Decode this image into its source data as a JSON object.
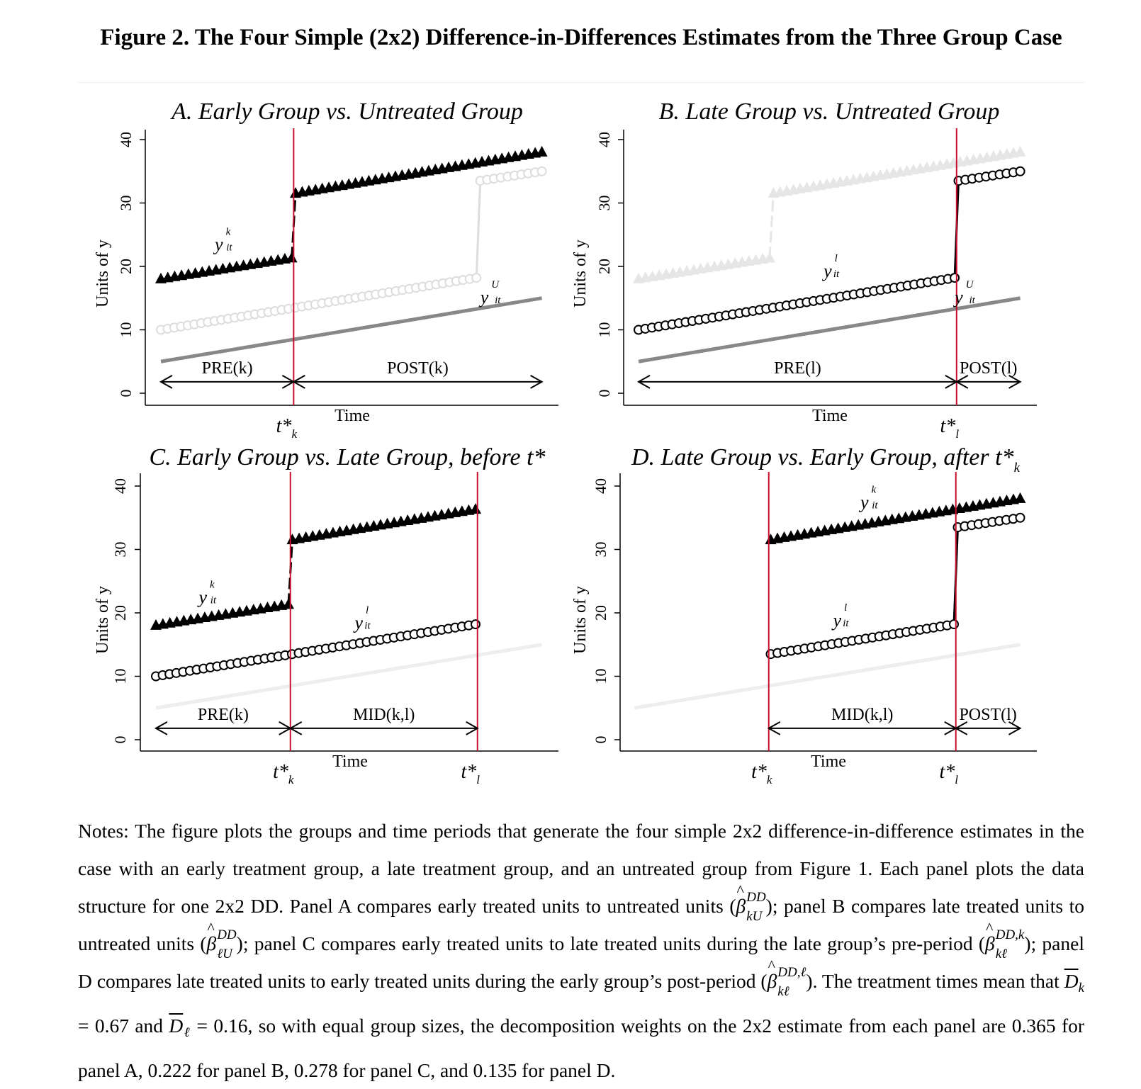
{
  "figure": {
    "title": "Figure 2. The Four Simple (2x2) Difference-in-Differences Estimates from the Three Group Case"
  },
  "chart_data": [
    {
      "type": "line",
      "panel": "A",
      "title": "A. Early Group vs. Untreated Group",
      "xlabel": "Time",
      "ylabel": "Units of y",
      "yticks": [
        "0",
        "10",
        "20",
        "30",
        "40"
      ],
      "ylim": [
        0,
        40
      ],
      "xlim": [
        0,
        100
      ],
      "series": [
        {
          "name": "y^k_it",
          "marker": "triangle",
          "color": "#000000",
          "emphasis": "active",
          "pre": {
            "x": [
              0,
              34
            ],
            "y": [
              18,
              21.3
            ]
          },
          "post": {
            "x": [
              35,
              99
            ],
            "y": [
              31.5,
              38
            ]
          }
        },
        {
          "name": "y^l_it",
          "marker": "circle",
          "color": "#dddddd",
          "emphasis": "faded",
          "pre": {
            "x": [
              0,
              82
            ],
            "y": [
              10,
              18.2
            ]
          },
          "post": {
            "x": [
              83,
              99
            ],
            "y": [
              33.5,
              35
            ]
          }
        },
        {
          "name": "y^U_it",
          "marker": "none",
          "color": "#888888",
          "emphasis": "active",
          "line": {
            "x": [
              0,
              99
            ],
            "y": [
              5,
              15
            ]
          }
        }
      ],
      "vlines": [
        {
          "x": 34.5,
          "label": "t*k"
        }
      ],
      "periods": [
        {
          "label": "PRE(k)",
          "from": 0,
          "to": 34.5
        },
        {
          "label": "POST(k)",
          "from": 34.5,
          "to": 99
        }
      ]
    },
    {
      "type": "line",
      "panel": "B",
      "title": "B. Late Group vs. Untreated Group",
      "xlabel": "Time",
      "ylabel": "Units of y",
      "yticks": [
        "0",
        "10",
        "20",
        "30",
        "40"
      ],
      "ylim": [
        0,
        40
      ],
      "xlim": [
        0,
        100
      ],
      "series": [
        {
          "name": "y^k_it",
          "marker": "triangle",
          "color": "#e6e6e6",
          "emphasis": "faded",
          "pre": {
            "x": [
              0,
              34
            ],
            "y": [
              18,
              21.3
            ]
          },
          "post": {
            "x": [
              35,
              99
            ],
            "y": [
              31.5,
              38
            ]
          }
        },
        {
          "name": "y^l_it",
          "marker": "circle",
          "color": "#000000",
          "emphasis": "active",
          "pre": {
            "x": [
              0,
              82
            ],
            "y": [
              10,
              18.2
            ]
          },
          "post": {
            "x": [
              83,
              99
            ],
            "y": [
              33.5,
              35
            ]
          }
        },
        {
          "name": "y^U_it",
          "marker": "none",
          "color": "#888888",
          "emphasis": "active",
          "line": {
            "x": [
              0,
              99
            ],
            "y": [
              5,
              15
            ]
          }
        }
      ],
      "vlines": [
        {
          "x": 82.5,
          "label": "t*l"
        }
      ],
      "periods": [
        {
          "label": "PRE(l)",
          "from": 0,
          "to": 82.5
        },
        {
          "label": "POST(l)",
          "from": 82.5,
          "to": 99
        }
      ]
    },
    {
      "type": "line",
      "panel": "C",
      "title": "C. Early Group vs. Late Group, before t*",
      "xlabel": "Time",
      "ylabel": "Units of y",
      "yticks": [
        "0",
        "10",
        "20",
        "30",
        "40"
      ],
      "ylim": [
        0,
        40
      ],
      "xlim": [
        0,
        100
      ],
      "series": [
        {
          "name": "y^k_it",
          "marker": "triangle",
          "color": "#000000",
          "emphasis": "active",
          "pre": {
            "x": [
              0,
              34
            ],
            "y": [
              18,
              21.3
            ]
          },
          "post": {
            "x": [
              35,
              82
            ],
            "y": [
              31.5,
              36.3
            ]
          }
        },
        {
          "name": "y^l_it",
          "marker": "circle",
          "color": "#000000",
          "emphasis": "active",
          "pre": {
            "x": [
              0,
              82
            ],
            "y": [
              10,
              18.2
            ]
          }
        },
        {
          "name": "y^U_it",
          "marker": "none",
          "color": "#eeeeee",
          "emphasis": "faded",
          "line": {
            "x": [
              0,
              99
            ],
            "y": [
              5,
              15
            ]
          }
        }
      ],
      "vlines": [
        {
          "x": 34.5,
          "label": "t*k"
        },
        {
          "x": 82.5,
          "label": "t*l"
        }
      ],
      "periods": [
        {
          "label": "PRE(k)",
          "from": 0,
          "to": 34.5
        },
        {
          "label": "MID(k,l)",
          "from": 34.5,
          "to": 82.5
        }
      ]
    },
    {
      "type": "line",
      "panel": "D",
      "title": "D. Late Group vs. Early Group, after t*",
      "xlabel": "Time",
      "ylabel": "Units of y",
      "yticks": [
        "0",
        "10",
        "20",
        "30",
        "40"
      ],
      "ylim": [
        0,
        40
      ],
      "xlim": [
        0,
        100
      ],
      "series": [
        {
          "name": "y^k_it",
          "marker": "triangle",
          "color": "#000000",
          "emphasis": "active",
          "post": {
            "x": [
              35,
              99
            ],
            "y": [
              31.5,
              38
            ]
          }
        },
        {
          "name": "y^l_it",
          "marker": "circle",
          "color": "#000000",
          "emphasis": "active",
          "pre": {
            "x": [
              35,
              82
            ],
            "y": [
              13.5,
              18.2
            ]
          },
          "post": {
            "x": [
              83,
              99
            ],
            "y": [
              33.5,
              35
            ]
          }
        },
        {
          "name": "y^U_it",
          "marker": "none",
          "color": "#eeeeee",
          "emphasis": "faded",
          "line": {
            "x": [
              0,
              99
            ],
            "y": [
              5,
              15
            ]
          }
        }
      ],
      "vlines": [
        {
          "x": 34.5,
          "label": "t*k"
        },
        {
          "x": 82.5,
          "label": "t*l"
        }
      ],
      "periods": [
        {
          "label": "MID(k,l)",
          "from": 34.5,
          "to": 82.5
        },
        {
          "label": "POST(l)",
          "from": 82.5,
          "to": 99
        }
      ]
    }
  ],
  "notes": {
    "p1": "Notes: The figure plots the groups and time periods that generate the four simple 2x2 difference-in-difference estimates in the case with an early treatment group, a late treatment group, and an untreated group from Figure 1. Each panel plots the data structure for one 2x2 DD. Panel A compares early treated units to untreated units (",
    "p2": "); panel B compares late treated units to untreated units (",
    "p3": "); panel C compares early treated units to late treated units during the late group’s pre-period (",
    "p4": "); panel D compares late treated units to early treated units during the early group’s post-period (",
    "p5": "). The treatment times mean that ",
    "p6": " = 0.67 and ",
    "p7": " = 0.16, so with equal group sizes, the decomposition weights on the 2x2 estimate from each panel are 0.365 for panel A, 0.222 for panel B, 0.278 for panel C, and 0.135 for panel D.",
    "beta": "β",
    "dbar": "D",
    "sup_dd": "DD",
    "sup_ddk": "DD,k",
    "sup_ddl": "DD,ℓ",
    "sub_kU": "kU",
    "sub_lU": "ℓU",
    "sub_kl": "kℓ",
    "sub_k": "k",
    "sub_l": "ℓ"
  }
}
